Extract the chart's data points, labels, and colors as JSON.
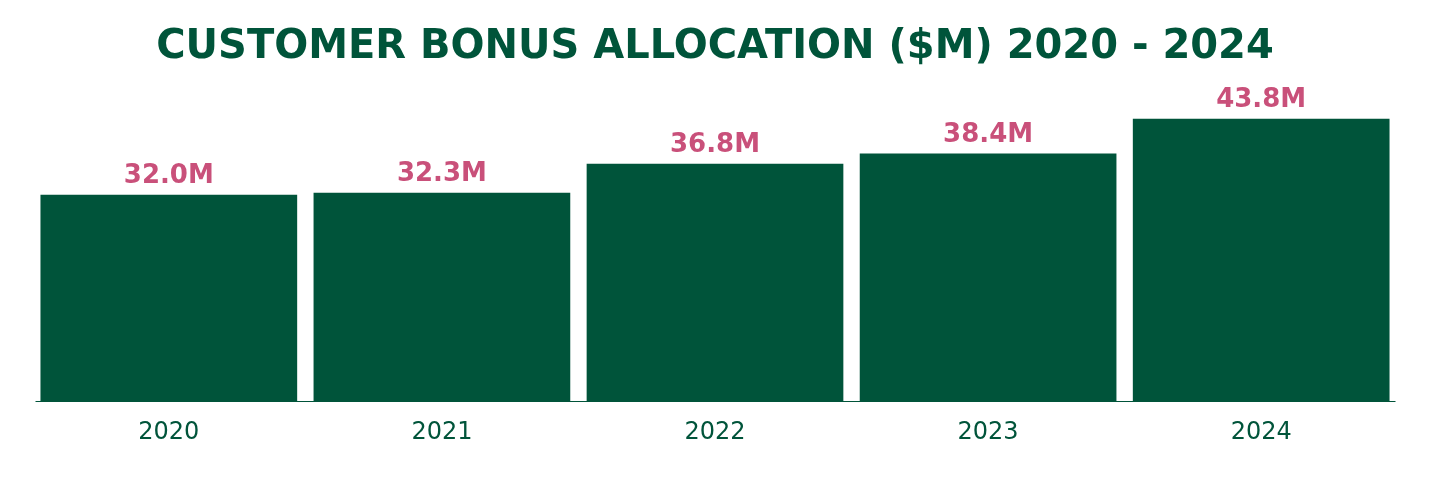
{
  "chart_data": {
    "type": "bar",
    "title": "CUSTOMER BONUS ALLOCATION ($M) 2020 - 2024",
    "categories": [
      "2020",
      "2021",
      "2022",
      "2023",
      "2024"
    ],
    "values": [
      32.0,
      32.3,
      36.8,
      38.4,
      43.8
    ],
    "value_labels": [
      "32.0M",
      "32.3M",
      "36.8M",
      "38.4M",
      "43.8M"
    ],
    "color": "#00543a"
  }
}
